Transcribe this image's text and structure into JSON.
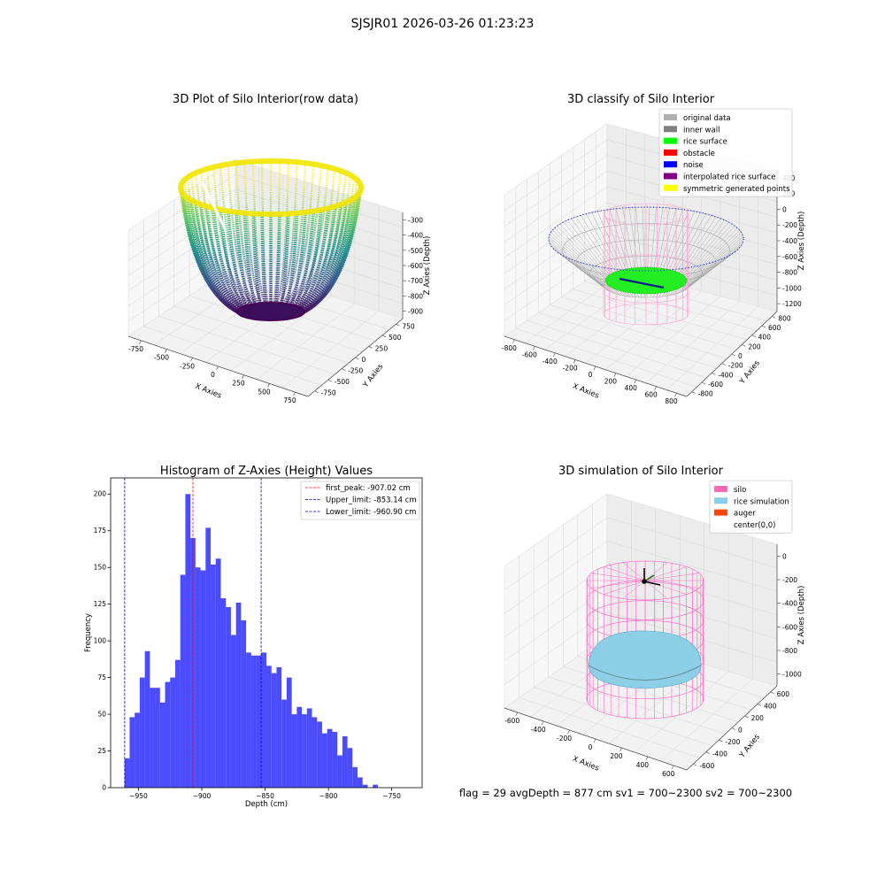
{
  "figure": {
    "suptitle": "SJSJR01 2026-03-26 01:23:23",
    "status_line": "flag = 29  avgDepth = 877 cm  sv1 = 700~2300  sv2 = 700~2300"
  },
  "panels": {
    "raw": {
      "title": "3D Plot of Silo Interior(row data)",
      "xlabel": "X Axies",
      "ylabel": "Y Axies",
      "zlabel": "Z Axies (Depth)",
      "xticks": [
        "-750",
        "-500",
        "-250",
        "0",
        "250",
        "500",
        "750"
      ],
      "yticks": [
        "-750",
        "-500",
        "-250",
        "0",
        "250",
        "500",
        "750"
      ],
      "zticks": [
        "-300",
        "-400",
        "-500",
        "-600",
        "-700",
        "-800",
        "-900"
      ]
    },
    "classify": {
      "title": "3D classify of Silo Interior",
      "xlabel": "X Axies",
      "ylabel": "Y Axies",
      "zlabel": "Z Axies (Depth)",
      "xticks": [
        "-800",
        "-600",
        "-400",
        "-200",
        "0",
        "200",
        "400",
        "600",
        "800"
      ],
      "yticks": [
        "-800",
        "-600",
        "-400",
        "-200",
        "0",
        "200",
        "400",
        "600",
        "800"
      ],
      "zticks": [
        "400",
        "200",
        "0",
        "-200",
        "-400",
        "-600",
        "-800",
        "-1000",
        "-1200"
      ],
      "legend": [
        {
          "label": "original data",
          "color": "#b0b0b0"
        },
        {
          "label": "inner wall",
          "color": "#808080"
        },
        {
          "label": "rice surface",
          "color": "#00ff00"
        },
        {
          "label": "obstacle",
          "color": "#ff0000"
        },
        {
          "label": "noise",
          "color": "#0000ff"
        },
        {
          "label": "interpolated rice surface",
          "color": "#800080"
        },
        {
          "label": "symmetric generated points",
          "color": "#ffff00"
        }
      ]
    },
    "simulation": {
      "title": "3D simulation of Silo Interior",
      "xlabel": "X Axies",
      "ylabel": "Y Axies",
      "zlabel": "Z Axies (Depth)",
      "xticks": [
        "-600",
        "-400",
        "-200",
        "0",
        "200",
        "400",
        "600"
      ],
      "yticks": [
        "-600",
        "-400",
        "-200",
        "0",
        "200",
        "400",
        "600"
      ],
      "zticks": [
        "0",
        "-200",
        "-400",
        "-600",
        "-800",
        "-1000"
      ],
      "legend": [
        {
          "label": "silo",
          "color": "#ff69b4"
        },
        {
          "label": "rice simulation",
          "color": "#87ceeb"
        },
        {
          "label": "auger",
          "color": "#ff4500"
        },
        {
          "label": "center(0,0)",
          "color": ""
        }
      ]
    }
  },
  "chart_data": {
    "type": "bar",
    "title": "Histogram of Z-Axies (Height) Values",
    "xlabel": "Depth (cm)",
    "ylabel": "Frequency",
    "xlim": [
      -972,
      -726
    ],
    "ylim": [
      0,
      211
    ],
    "xticks": [
      -950,
      -900,
      -850,
      -800,
      -750
    ],
    "yticks": [
      0,
      25,
      50,
      75,
      100,
      125,
      150,
      175,
      200
    ],
    "bar_color": "#0000ff",
    "bin_width": 4.0,
    "bins_start": -961,
    "values": [
      20,
      48,
      51,
      75,
      93,
      68,
      68,
      58,
      72,
      75,
      87,
      145,
      200,
      170,
      150,
      148,
      177,
      152,
      156,
      129,
      123,
      104,
      126,
      114,
      92,
      90,
      90,
      92,
      83,
      78,
      82,
      60,
      75,
      50,
      55,
      50,
      54,
      48,
      45,
      37,
      40,
      38,
      22,
      35,
      27,
      14,
      7,
      2,
      0,
      2
    ],
    "lines": [
      {
        "label": "first_peak: -907.02 cm",
        "x": -907.02,
        "color": "#ff0000"
      },
      {
        "label": "Upper_limit: -853.14 cm",
        "x": -853.14,
        "color": "#0000aa"
      },
      {
        "label": "Lower_limit: -960.90 cm",
        "x": -960.9,
        "color": "#0000aa"
      }
    ],
    "legend_position": "upper right"
  }
}
